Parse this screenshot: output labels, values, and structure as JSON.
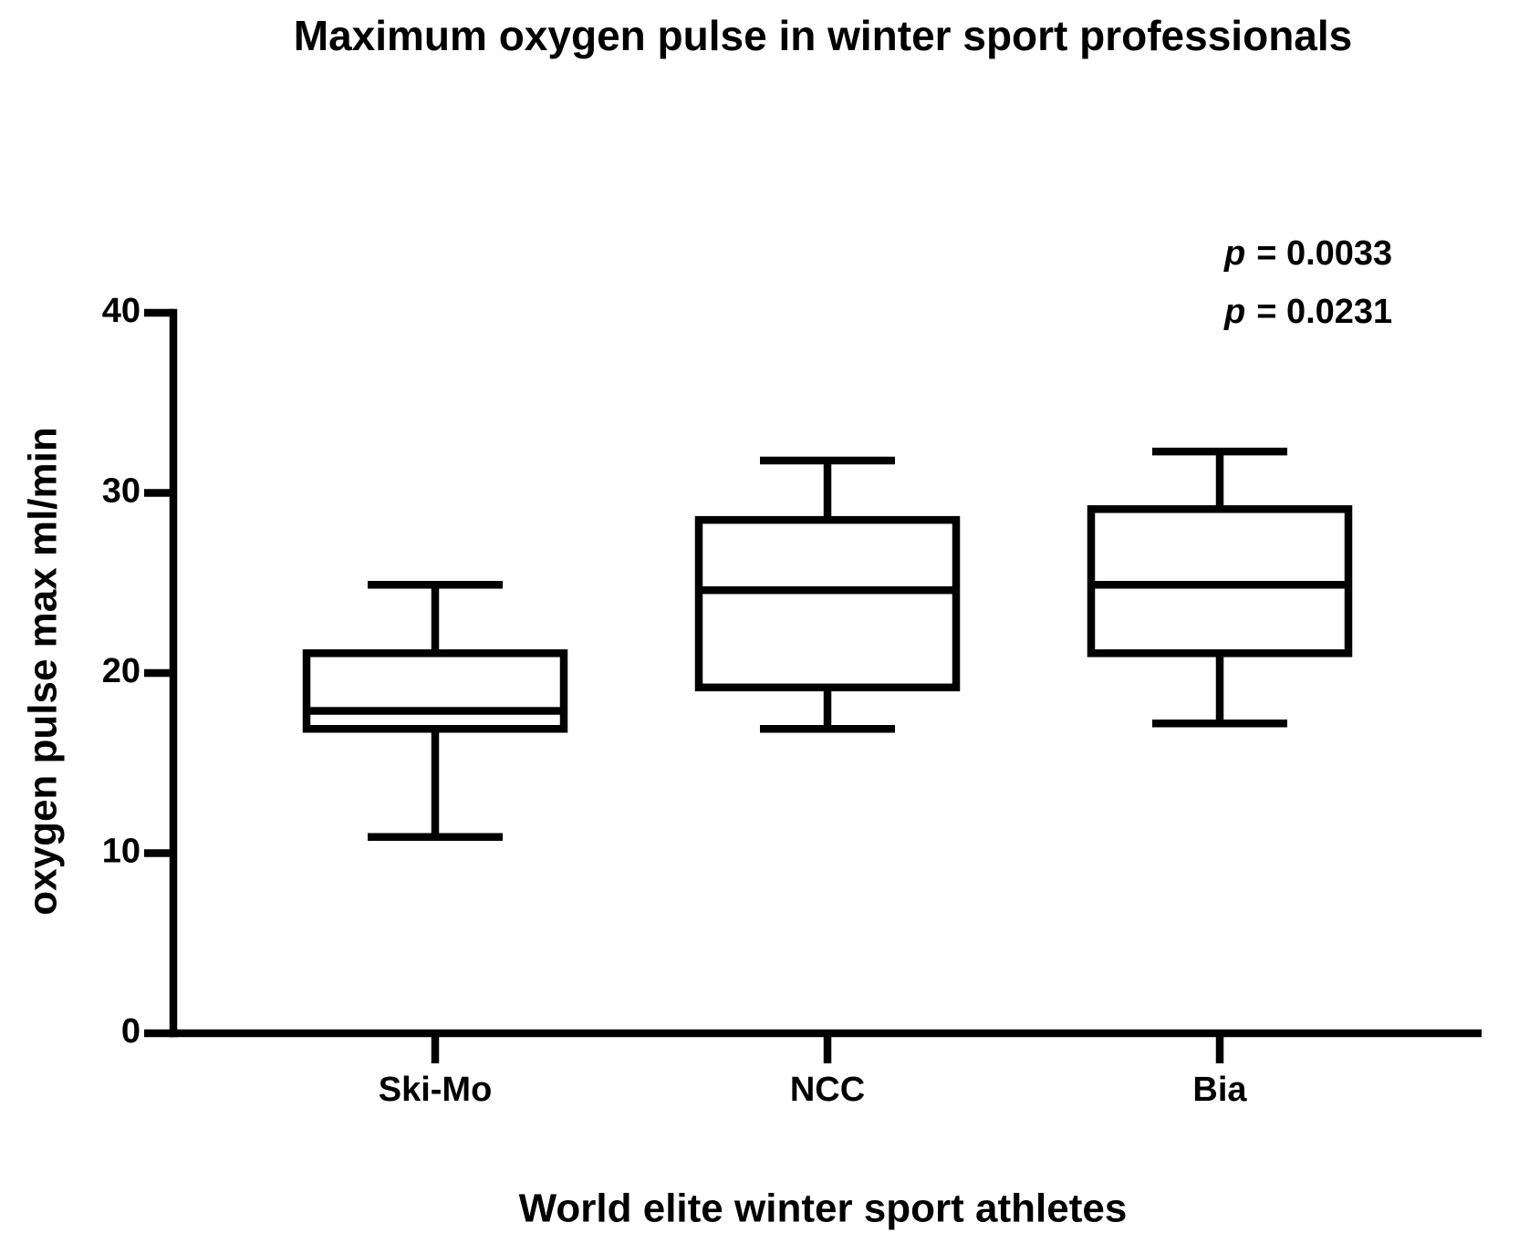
{
  "chart_data": {
    "type": "box",
    "title": "Maximum oxygen pulse in winter sport professionals",
    "x_label": "World elite winter sport athletes",
    "y_label": "oxygen pulse  max  ml/min",
    "categories": [
      "Ski-Mo",
      "NCC",
      "Bia"
    ],
    "min": [
      10.9,
      16.9,
      17.2
    ],
    "q1": [
      16.9,
      19.2,
      21.1
    ],
    "median": [
      17.9,
      24.6,
      24.9
    ],
    "q3": [
      21.1,
      28.5,
      29.1
    ],
    "max": [
      24.9,
      31.8,
      32.3
    ],
    "color": "#000000",
    "ylim": [
      0,
      40
    ],
    "yticks": [
      0,
      10,
      20,
      30,
      40
    ],
    "annotations": [
      {
        "italic": "p",
        "text": "= 0.0033"
      },
      {
        "italic": "p",
        "text": "= 0.0231"
      }
    ]
  }
}
